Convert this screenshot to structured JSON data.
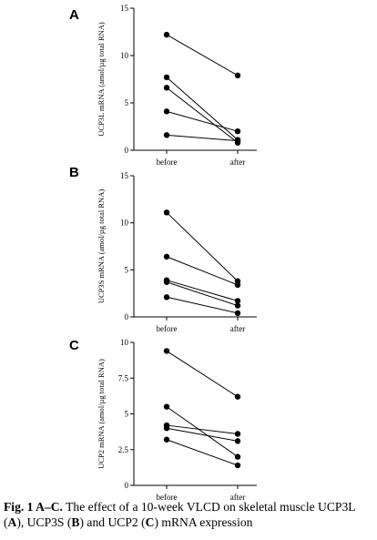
{
  "chart_data": [
    {
      "type": "line",
      "panel": "A",
      "categories": [
        "before",
        "after"
      ],
      "ylabel": "UCP3L mRNA (amol/µg total RNA)",
      "ylim": [
        0,
        15
      ],
      "yticks": [
        0,
        5,
        10,
        15
      ],
      "series": [
        {
          "values": [
            12.2,
            7.9
          ]
        },
        {
          "values": [
            7.7,
            1.1
          ]
        },
        {
          "values": [
            6.6,
            0.8
          ]
        },
        {
          "values": [
            4.1,
            2.0
          ]
        },
        {
          "values": [
            1.6,
            1.0
          ]
        }
      ]
    },
    {
      "type": "line",
      "panel": "B",
      "categories": [
        "before",
        "after"
      ],
      "ylabel": "UCP3S mRNA (amol/µg total RNA)",
      "ylim": [
        0,
        15
      ],
      "yticks": [
        0,
        5,
        10,
        15
      ],
      "series": [
        {
          "values": [
            11.1,
            3.8
          ]
        },
        {
          "values": [
            6.4,
            3.4
          ]
        },
        {
          "values": [
            3.9,
            1.7
          ]
        },
        {
          "values": [
            3.7,
            1.2
          ]
        },
        {
          "values": [
            2.1,
            0.4
          ]
        }
      ]
    },
    {
      "type": "line",
      "panel": "C",
      "categories": [
        "before",
        "after"
      ],
      "ylabel": "UCP2 mRNA (amol/µg total RNA)",
      "ylim": [
        0,
        10
      ],
      "yticks": [
        0,
        2.5,
        5,
        7.5,
        10
      ],
      "series": [
        {
          "values": [
            9.4,
            6.2
          ]
        },
        {
          "values": [
            5.5,
            2.0
          ]
        },
        {
          "values": [
            4.2,
            3.6
          ]
        },
        {
          "values": [
            4.0,
            3.1
          ]
        },
        {
          "values": [
            3.2,
            1.4
          ]
        }
      ]
    }
  ],
  "caption": {
    "label": "Fig. 1 A–C.",
    "text_1": " The effect of a 10-week VLCD on skeletal muscle UCP3L (",
    "a": "A",
    "text_2": "), UCP3S (",
    "b": "B",
    "text_3": ") and UCP2 (",
    "c": "C",
    "text_4": ") mRNA expression"
  }
}
